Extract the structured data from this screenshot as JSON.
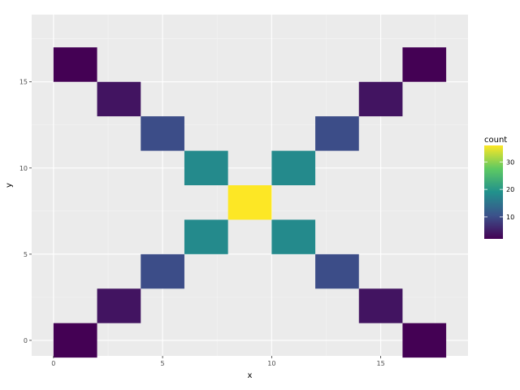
{
  "chart_data": {
    "type": "heatmap",
    "title": "",
    "xlabel": "x",
    "ylabel": "y",
    "xlim": [
      -1,
      19
    ],
    "ylim": [
      -0.9,
      18.9
    ],
    "xticks": [
      0,
      5,
      10,
      15
    ],
    "yticks": [
      0,
      5,
      10,
      15
    ],
    "bin_width": 2,
    "bin_height": 2,
    "grid": true,
    "legend": {
      "title": "count",
      "position": "right",
      "ticks": [
        10,
        20,
        30
      ],
      "range": [
        2,
        36
      ],
      "colors": [
        "#440154",
        "#3b528b",
        "#21918c",
        "#5ec962",
        "#fde725"
      ]
    },
    "cells": [
      {
        "x": 1,
        "y": 0,
        "count": 2
      },
      {
        "x": 3,
        "y": 2,
        "count": 4
      },
      {
        "x": 5,
        "y": 4,
        "count": 10
      },
      {
        "x": 7,
        "y": 6,
        "count": 18
      },
      {
        "x": 9,
        "y": 8,
        "count": 36
      },
      {
        "x": 11,
        "y": 6,
        "count": 18
      },
      {
        "x": 13,
        "y": 4,
        "count": 10
      },
      {
        "x": 15,
        "y": 2,
        "count": 4
      },
      {
        "x": 17,
        "y": 0,
        "count": 2
      },
      {
        "x": 7,
        "y": 10,
        "count": 18
      },
      {
        "x": 5,
        "y": 12,
        "count": 10
      },
      {
        "x": 3,
        "y": 14,
        "count": 4
      },
      {
        "x": 1,
        "y": 16,
        "count": 2
      },
      {
        "x": 11,
        "y": 10,
        "count": 18
      },
      {
        "x": 13,
        "y": 12,
        "count": 10
      },
      {
        "x": 15,
        "y": 14,
        "count": 4
      },
      {
        "x": 17,
        "y": 16,
        "count": 2
      }
    ]
  },
  "colors": {
    "panel_background": "#ebebeb",
    "grid_major": "#ffffff"
  }
}
